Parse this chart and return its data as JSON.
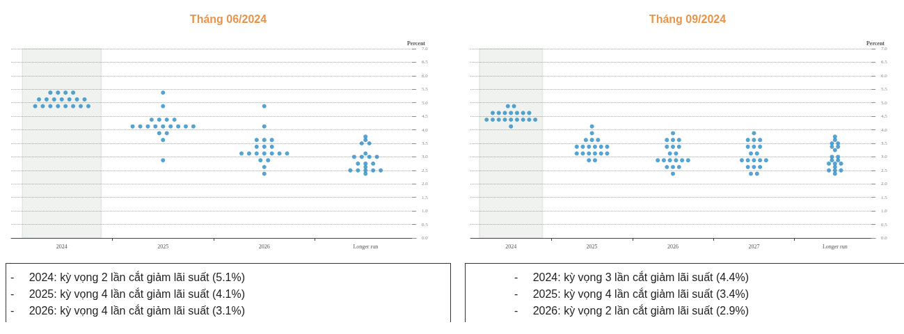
{
  "chart_data": [
    {
      "type": "scatter",
      "title": "Tháng 06/2024",
      "ylabel": "Percent",
      "categories": [
        "2024",
        "2025",
        "2026",
        "Longer run"
      ],
      "series": [
        {
          "color": "#2b8cc4",
          "values": [
            5.375,
            5.375,
            4.875,
            3.75
          ]
        },
        {
          "color": "#2b8cc4",
          "values": [
            5.375,
            4.875,
            4.125,
            3.625
          ]
        },
        {
          "color": "#2b8cc4",
          "values": [
            5.375,
            4.375,
            3.625,
            3.5
          ]
        },
        {
          "color": "#2b8cc4",
          "values": [
            5.375,
            4.375,
            3.625,
            3.5
          ]
        },
        {
          "color": "#2b8cc4",
          "values": [
            5.125,
            4.375,
            3.625,
            3.125
          ]
        },
        {
          "color": "#2b8cc4",
          "values": [
            5.125,
            4.375,
            3.375,
            3
          ]
        },
        {
          "color": "#2b8cc4",
          "values": [
            5.125,
            4.125,
            3.375,
            3
          ]
        },
        {
          "color": "#2b8cc4",
          "values": [
            5.125,
            4.125,
            3.375,
            3
          ]
        },
        {
          "color": "#2b8cc4",
          "values": [
            5.125,
            4.125,
            3.125,
            3
          ]
        },
        {
          "color": "#2b8cc4",
          "values": [
            5.125,
            4.125,
            3.125,
            2.75
          ]
        },
        {
          "color": "#2b8cc4",
          "values": [
            5.125,
            4.125,
            3.125,
            2.75
          ]
        },
        {
          "color": "#2b8cc4",
          "values": [
            4.875,
            4.125,
            3.125,
            2.75
          ]
        },
        {
          "color": "#2b8cc4",
          "values": [
            4.875,
            4.125,
            3.125,
            2.625
          ]
        },
        {
          "color": "#2b8cc4",
          "values": [
            4.875,
            4.125,
            3.125,
            2.5
          ]
        },
        {
          "color": "#2b8cc4",
          "values": [
            4.875,
            4.125,
            3.125,
            2.5
          ]
        },
        {
          "color": "#2b8cc4",
          "values": [
            4.875,
            3.875,
            2.875,
            2.5
          ]
        },
        {
          "color": "#2b8cc4",
          "values": [
            4.875,
            3.875,
            2.875,
            2.5
          ]
        },
        {
          "color": "#2b8cc4",
          "values": [
            4.875,
            3.625,
            2.625,
            2.5
          ]
        },
        {
          "color": "#2b8cc4",
          "values": [
            4.875,
            2.875,
            2.375,
            2.375
          ]
        }
      ],
      "marker": "circle",
      "grid": "y",
      "ylim": [
        0,
        7
      ],
      "bands": [
        {
          "axis": "x",
          "from": "2024",
          "to": "2024",
          "color": "#2e5e2e"
        }
      ],
      "yticks": [
        {
          "value": 0,
          "label": "0.0"
        },
        {
          "value": 0.5,
          "label": "0.5"
        },
        {
          "value": 1,
          "label": "1.0"
        },
        {
          "value": 1.5,
          "label": "1.5"
        },
        {
          "value": 2,
          "label": "2.0"
        },
        {
          "value": 2.5,
          "label": "2.5"
        },
        {
          "value": 3,
          "label": "3.0"
        },
        {
          "value": 3.5,
          "label": "3.5"
        },
        {
          "value": 4,
          "label": "4.0"
        },
        {
          "value": 4.5,
          "label": "4.5"
        },
        {
          "value": 5,
          "label": "5.0"
        },
        {
          "value": 5.5,
          "label": "5.5"
        },
        {
          "value": 6,
          "label": "6.0"
        },
        {
          "value": 6.5,
          "label": "6.5"
        },
        {
          "value": 7,
          "label": "7.0"
        }
      ],
      "annotations": [
        "-\t2024: kỳ vọng 2 lần cắt giảm lãi suất (5.1%)",
        "-\t2025: kỳ vọng 4 lần cắt giảm lãi suất (4.1%)",
        "-\t2026: kỳ vọng 4 lần cắt giảm lãi suất (3.1%)"
      ]
    },
    {
      "type": "scatter",
      "title": "Tháng 09/2024",
      "ylabel": "Percent",
      "categories": [
        "2024",
        "2025",
        "2026",
        "2027",
        "Longer run"
      ],
      "series": [
        {
          "color": "#2b8cc4",
          "values": [
            4.875,
            4.125,
            3.875,
            3.875,
            3.75
          ]
        },
        {
          "color": "#2b8cc4",
          "values": [
            4.875,
            3.875,
            3.625,
            3.625,
            3.625
          ]
        },
        {
          "color": "#2b8cc4",
          "values": [
            4.625,
            3.625,
            3.625,
            3.625,
            3.5
          ]
        },
        {
          "color": "#2b8cc4",
          "values": [
            4.625,
            3.625,
            3.625,
            3.625,
            3.5
          ]
        },
        {
          "color": "#2b8cc4",
          "values": [
            4.625,
            3.625,
            3.375,
            3.375,
            3.375
          ]
        },
        {
          "color": "#2b8cc4",
          "values": [
            4.625,
            3.375,
            3.375,
            3.375,
            3.375
          ]
        },
        {
          "color": "#2b8cc4",
          "values": [
            4.625,
            3.375,
            3.375,
            3.375,
            3.25
          ]
        },
        {
          "color": "#2b8cc4",
          "values": [
            4.625,
            3.375,
            3.125,
            3.125,
            3
          ]
        },
        {
          "color": "#2b8cc4",
          "values": [
            4.625,
            3.375,
            3.125,
            3.125,
            3
          ]
        },
        {
          "color": "#2b8cc4",
          "values": [
            4.375,
            3.375,
            2.875,
            2.875,
            2.875
          ]
        },
        {
          "color": "#2b8cc4",
          "values": [
            4.375,
            3.375,
            2.875,
            2.875,
            2.875
          ]
        },
        {
          "color": "#2b8cc4",
          "values": [
            4.375,
            3.125,
            2.875,
            2.875,
            2.75
          ]
        },
        {
          "color": "#2b8cc4",
          "values": [
            4.375,
            3.125,
            2.875,
            2.875,
            2.75
          ]
        },
        {
          "color": "#2b8cc4",
          "values": [
            4.375,
            3.125,
            2.875,
            2.875,
            2.75
          ]
        },
        {
          "color": "#2b8cc4",
          "values": [
            4.375,
            3.125,
            2.875,
            2.625,
            2.625
          ]
        },
        {
          "color": "#2b8cc4",
          "values": [
            4.375,
            3.125,
            2.625,
            2.625,
            2.5
          ]
        },
        {
          "color": "#2b8cc4",
          "values": [
            4.375,
            3.125,
            2.625,
            2.625,
            2.5
          ]
        },
        {
          "color": "#2b8cc4",
          "values": [
            4.375,
            2.875,
            2.625,
            2.375,
            2.5
          ]
        },
        {
          "color": "#2b8cc4",
          "values": [
            4.125,
            2.875,
            2.375,
            2.375,
            2.375
          ]
        }
      ],
      "marker": "circle",
      "grid": "y",
      "ylim": [
        0,
        7
      ],
      "bands": [
        {
          "axis": "x",
          "from": "2024",
          "to": "2024",
          "color": "#2e5e2e"
        }
      ],
      "yticks": [
        {
          "value": 0,
          "label": "0.0"
        },
        {
          "value": 0.5,
          "label": "0.5"
        },
        {
          "value": 1,
          "label": "1.0"
        },
        {
          "value": 1.5,
          "label": "1.5"
        },
        {
          "value": 2,
          "label": "2.0"
        },
        {
          "value": 2.5,
          "label": "2.5"
        },
        {
          "value": 3,
          "label": "3.0"
        },
        {
          "value": 3.5,
          "label": "3.5"
        },
        {
          "value": 4,
          "label": "4.0"
        },
        {
          "value": 4.5,
          "label": "4.5"
        },
        {
          "value": 5,
          "label": "5.0"
        },
        {
          "value": 5.5,
          "label": "5.5"
        },
        {
          "value": 6,
          "label": "6.0"
        },
        {
          "value": 6.5,
          "label": "6.5"
        },
        {
          "value": 7,
          "label": "7.0"
        }
      ],
      "annotations": [
        "-\t2024: kỳ vọng 3 lần cắt giảm lãi suất (4.4%)",
        "-\t2025: kỳ vọng 4 lần cắt giảm lãi suất (3.4%)",
        "-\t2026: kỳ vọng 2 lần cắt giảm lãi suất (2.9%)"
      ]
    }
  ]
}
